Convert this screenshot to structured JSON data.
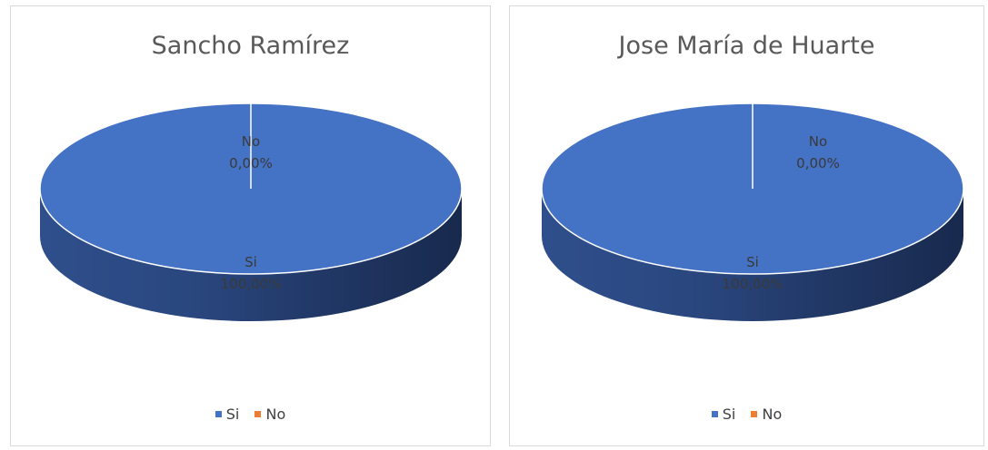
{
  "chart_data": [
    {
      "type": "pie",
      "title": "Sancho Ramírez",
      "categories": [
        "Si",
        "No"
      ],
      "values": [
        100,
        0
      ],
      "data_labels": [
        {
          "category": "Si",
          "percent": "100,00%"
        },
        {
          "category": "No",
          "percent": "0,00%"
        }
      ],
      "colors": [
        "#4472c4",
        "#ed7d31"
      ],
      "legend": {
        "placement": "bottom",
        "entries": [
          "Si",
          "No"
        ]
      },
      "style": "3d"
    },
    {
      "type": "pie",
      "title": "Jose María de Huarte",
      "categories": [
        "Si",
        "No"
      ],
      "values": [
        100,
        0
      ],
      "data_labels": [
        {
          "category": "Si",
          "percent": "100,00%"
        },
        {
          "category": "No",
          "percent": "0,00%"
        }
      ],
      "colors": [
        "#4472c4",
        "#ed7d31"
      ],
      "legend": {
        "placement": "bottom",
        "entries": [
          "Si",
          "No"
        ]
      },
      "style": "3d"
    }
  ]
}
